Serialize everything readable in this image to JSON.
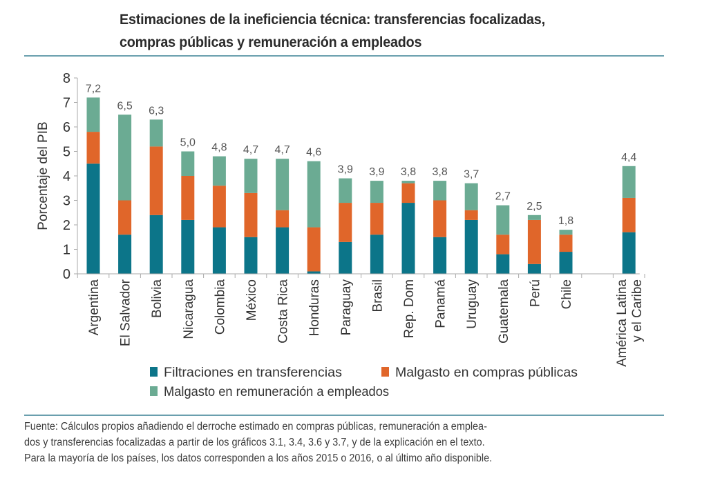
{
  "title_lines": [
    "Estimaciones de la ineficiencia técnica: transferencias focalizadas,",
    "compras públicas y remuneración a empleados"
  ],
  "source_lines": [
    "Fuente: Cálculos propios añadiendo el derroche estimado en compras públicas, remuneración a  emplea-",
    "dos y transferencias focalizadas a partir de los gráficos 3.1, 3.4, 3.6 y 3.7, y de la explicación en el texto.",
    "Para la mayoría de los países, los datos corresponden a los años 2015 o 2016, o al último año disponible."
  ],
  "colors": {
    "filtraciones": "#0c7589",
    "compras": "#e0662a",
    "remuneracion": "#6bab93",
    "axis": "#aaaaaa",
    "rule": "#6a9fae"
  },
  "chart_data": {
    "type": "bar",
    "stacked": true,
    "title": "Estimaciones de la ineficiencia técnica: transferencias focalizadas, compras públicas y remuneración a empleados",
    "xlabel": "",
    "ylabel": "Porcentaje del PIB",
    "ylim": [
      0,
      8
    ],
    "yticks": [
      0,
      1,
      2,
      3,
      4,
      5,
      6,
      7,
      8
    ],
    "grid": false,
    "legend_position": "bottom",
    "categories": [
      [
        "Argentina"
      ],
      [
        "El Salvador"
      ],
      [
        "Bolivia"
      ],
      [
        "Nicaragua"
      ],
      [
        "Colombia"
      ],
      [
        "México"
      ],
      [
        "Costa Rica"
      ],
      [
        "Honduras"
      ],
      [
        "Paraguay"
      ],
      [
        "Brasil"
      ],
      [
        "Rep. Dom"
      ],
      [
        "Panamá"
      ],
      [
        "Uruguay"
      ],
      [
        "Guatemala"
      ],
      [
        "Perú"
      ],
      [
        "Chile"
      ],
      [],
      [
        "América Latina",
        "y el Caribe"
      ]
    ],
    "series": [
      {
        "name": "Filtraciones en transferencias",
        "color_key": "filtraciones",
        "values": [
          4.5,
          1.6,
          2.4,
          2.2,
          1.9,
          1.5,
          1.9,
          0.1,
          1.3,
          1.6,
          2.9,
          1.5,
          2.2,
          0.8,
          0.4,
          0.9,
          null,
          1.7
        ]
      },
      {
        "name": "Malgasto en compras públicas",
        "color_key": "compras",
        "values": [
          1.3,
          1.4,
          2.8,
          1.8,
          1.7,
          1.8,
          0.7,
          1.8,
          1.6,
          1.3,
          0.8,
          1.5,
          0.4,
          0.8,
          1.8,
          0.7,
          null,
          1.4
        ]
      },
      {
        "name": "Malgasto en remuneración a empleados",
        "color_key": "remuneracion",
        "values": [
          1.4,
          3.5,
          1.1,
          1.0,
          1.2,
          1.4,
          2.1,
          2.7,
          1.0,
          0.9,
          0.1,
          0.8,
          1.1,
          1.2,
          0.2,
          0.2,
          null,
          1.3
        ]
      }
    ],
    "totals_labels": [
      "7,2",
      "6,5",
      "6,3",
      "5,0",
      "4,8",
      "4,7",
      "4,7",
      "4,6",
      "3,9",
      "3,9",
      "3,8",
      "3,8",
      "3,7",
      "2,7",
      "2,5",
      "1,8",
      "",
      "4,4"
    ]
  }
}
